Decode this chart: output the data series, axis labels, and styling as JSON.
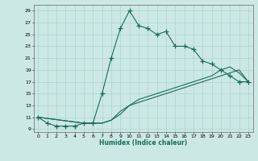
{
  "xlabel": "Humidex (Indice chaleur)",
  "bg_color": "#cce8e4",
  "grid_color": "#a8d4cf",
  "line_color": "#1a6b5a",
  "xlim": [
    -0.5,
    23.5
  ],
  "ylim": [
    8.5,
    30
  ],
  "xticks": [
    0,
    1,
    2,
    3,
    4,
    5,
    6,
    7,
    8,
    9,
    10,
    11,
    12,
    13,
    14,
    15,
    16,
    17,
    18,
    19,
    20,
    21,
    22,
    23
  ],
  "yticks": [
    9,
    11,
    13,
    15,
    17,
    19,
    21,
    23,
    25,
    27,
    29
  ],
  "line1_x": [
    0,
    1,
    2,
    3,
    4,
    5,
    6,
    7,
    8,
    9,
    10,
    11,
    12,
    13,
    14,
    15,
    16,
    17,
    18,
    19,
    20,
    21,
    22,
    23
  ],
  "line1_y": [
    11,
    10,
    9.5,
    9.5,
    9.5,
    10,
    10,
    15,
    21,
    26,
    29,
    26.5,
    26,
    25,
    25.5,
    23,
    23,
    22.5,
    20.5,
    20,
    19,
    18,
    17,
    17
  ],
  "line2_x": [
    0,
    5,
    6,
    7,
    8,
    9,
    10,
    11,
    12,
    13,
    14,
    15,
    16,
    17,
    18,
    19,
    20,
    21,
    22,
    23
  ],
  "line2_y": [
    11,
    10,
    10,
    10,
    10.5,
    11.5,
    13,
    13.5,
    14,
    14.5,
    15,
    15.5,
    16,
    16.5,
    17,
    17.5,
    18,
    18.5,
    19,
    17
  ],
  "line3_x": [
    0,
    5,
    6,
    7,
    8,
    9,
    10,
    11,
    12,
    13,
    14,
    15,
    16,
    17,
    18,
    19,
    20,
    21,
    22,
    23
  ],
  "line3_y": [
    11,
    10,
    10,
    10,
    10.5,
    12,
    13,
    14,
    14.5,
    15,
    15.5,
    16,
    16.5,
    17,
    17.5,
    18,
    19,
    19.5,
    18.5,
    17
  ]
}
